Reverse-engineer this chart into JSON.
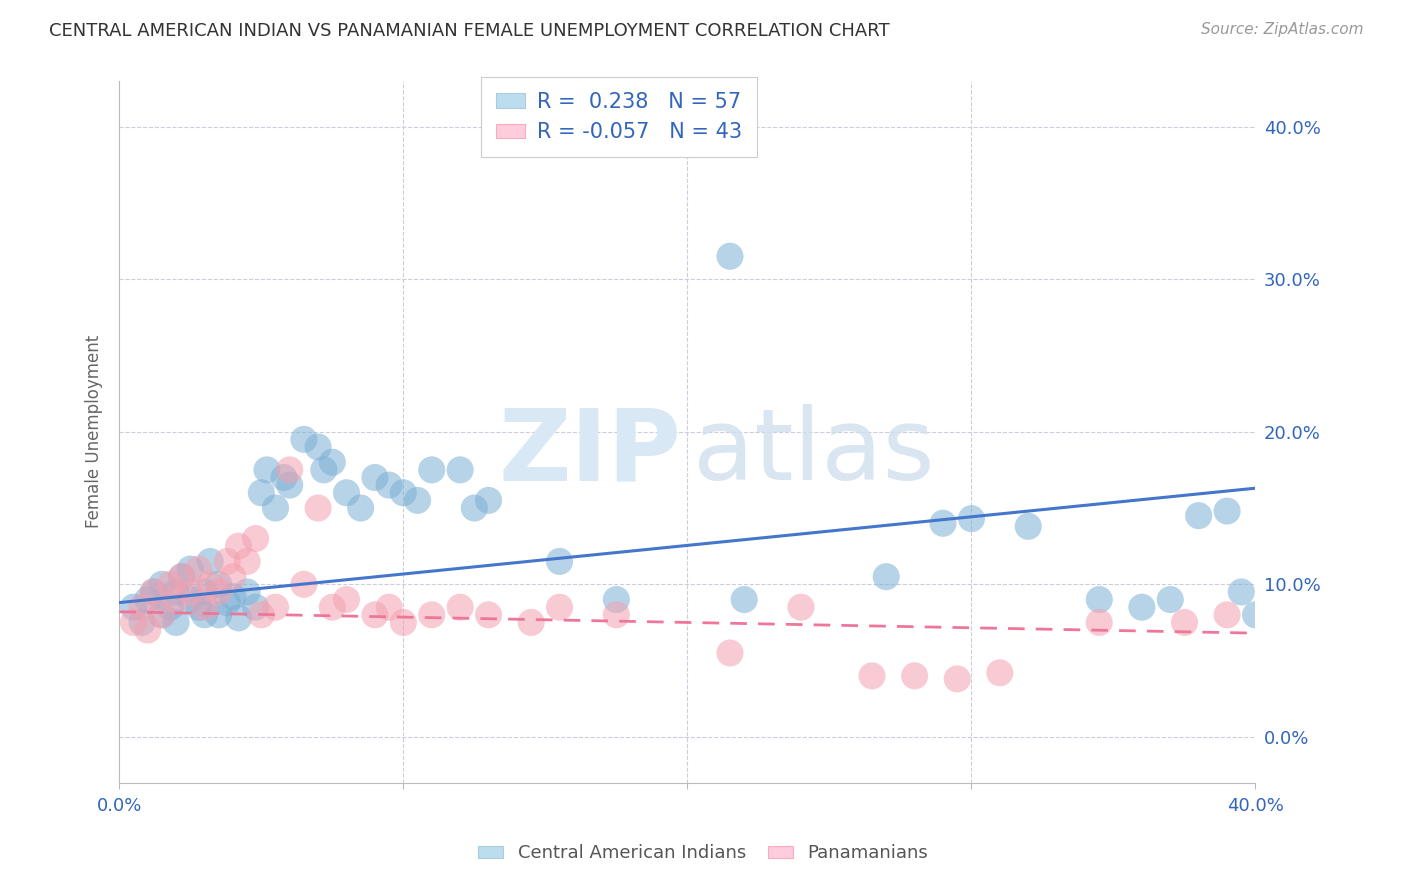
{
  "title": "CENTRAL AMERICAN INDIAN VS PANAMANIAN FEMALE UNEMPLOYMENT CORRELATION CHART",
  "source": "Source: ZipAtlas.com",
  "ylabel": "Female Unemployment",
  "right_yticks": [
    "40.0%",
    "30.0%",
    "20.0%",
    "10.0%",
    "0.0%"
  ],
  "right_ytick_vals": [
    0.4,
    0.3,
    0.2,
    0.1,
    0.0
  ],
  "xmin": 0.0,
  "xmax": 0.4,
  "ymin": -0.03,
  "ymax": 0.43,
  "blue_color": "#7BAFD4",
  "pink_color": "#F4A0B0",
  "blue_line_color": "#4477CC",
  "pink_line_color": "#EE7799",
  "r_blue": 0.238,
  "n_blue": 57,
  "r_pink": -0.057,
  "n_pink": 43,
  "legend_label_blue": "Central American Indians",
  "legend_label_pink": "Panamanians",
  "blue_scatter_x": [
    0.005,
    0.008,
    0.01,
    0.012,
    0.015,
    0.015,
    0.018,
    0.02,
    0.02,
    0.022,
    0.025,
    0.025,
    0.028,
    0.03,
    0.03,
    0.032,
    0.035,
    0.035,
    0.038,
    0.04,
    0.042,
    0.045,
    0.048,
    0.05,
    0.052,
    0.055,
    0.058,
    0.06,
    0.065,
    0.07,
    0.072,
    0.075,
    0.08,
    0.085,
    0.09,
    0.095,
    0.1,
    0.105,
    0.11,
    0.12,
    0.125,
    0.13,
    0.155,
    0.175,
    0.215,
    0.22,
    0.27,
    0.29,
    0.3,
    0.32,
    0.345,
    0.36,
    0.37,
    0.38,
    0.39,
    0.395,
    0.4
  ],
  "blue_scatter_y": [
    0.085,
    0.075,
    0.09,
    0.095,
    0.08,
    0.1,
    0.085,
    0.075,
    0.095,
    0.105,
    0.09,
    0.11,
    0.085,
    0.08,
    0.095,
    0.115,
    0.08,
    0.1,
    0.088,
    0.092,
    0.078,
    0.095,
    0.085,
    0.16,
    0.175,
    0.15,
    0.17,
    0.165,
    0.195,
    0.19,
    0.175,
    0.18,
    0.16,
    0.15,
    0.17,
    0.165,
    0.16,
    0.155,
    0.175,
    0.175,
    0.15,
    0.155,
    0.115,
    0.09,
    0.315,
    0.09,
    0.105,
    0.14,
    0.143,
    0.138,
    0.09,
    0.085,
    0.09,
    0.145,
    0.148,
    0.095,
    0.08
  ],
  "pink_scatter_x": [
    0.005,
    0.008,
    0.01,
    0.012,
    0.015,
    0.018,
    0.02,
    0.022,
    0.025,
    0.028,
    0.03,
    0.032,
    0.035,
    0.038,
    0.04,
    0.042,
    0.045,
    0.048,
    0.05,
    0.055,
    0.06,
    0.065,
    0.07,
    0.075,
    0.08,
    0.09,
    0.095,
    0.1,
    0.11,
    0.12,
    0.13,
    0.145,
    0.155,
    0.175,
    0.215,
    0.24,
    0.265,
    0.28,
    0.295,
    0.31,
    0.345,
    0.375,
    0.39
  ],
  "pink_scatter_y": [
    0.075,
    0.085,
    0.07,
    0.095,
    0.08,
    0.1,
    0.09,
    0.105,
    0.095,
    0.11,
    0.085,
    0.1,
    0.095,
    0.115,
    0.105,
    0.125,
    0.115,
    0.13,
    0.08,
    0.085,
    0.175,
    0.1,
    0.15,
    0.085,
    0.09,
    0.08,
    0.085,
    0.075,
    0.08,
    0.085,
    0.08,
    0.075,
    0.085,
    0.08,
    0.055,
    0.085,
    0.04,
    0.04,
    0.038,
    0.042,
    0.075,
    0.075,
    0.08
  ],
  "blue_line_x0": 0.0,
  "blue_line_y0": 0.088,
  "blue_line_x1": 0.4,
  "blue_line_y1": 0.163,
  "pink_line_x0": 0.0,
  "pink_line_y0": 0.082,
  "pink_line_x1": 0.4,
  "pink_line_y1": 0.068,
  "background_color": "#FFFFFF",
  "grid_color": "#DDDDEE",
  "title_fontsize": 13,
  "source_fontsize": 11,
  "tick_fontsize": 13,
  "ylabel_fontsize": 12
}
